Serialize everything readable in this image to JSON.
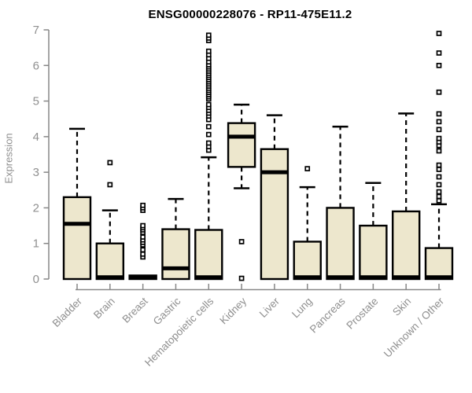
{
  "chart_data": {
    "type": "boxplot",
    "title": "ENSG00000228076 - RP11-475E11.2",
    "ylabel": "Expression",
    "ylim": [
      0,
      7
    ],
    "yticks": [
      0,
      1,
      2,
      3,
      4,
      5,
      6,
      7
    ],
    "grid": false,
    "categories": [
      "Bladder",
      "Brain",
      "Breast",
      "Gastric",
      "Hematopoietic cells",
      "Kidney",
      "Liver",
      "Lung",
      "Pancreas",
      "Prostate",
      "Skin",
      "Unknown / Other"
    ],
    "boxes": [
      {
        "category": "Bladder",
        "low": 0,
        "q1": 0,
        "median": 1.55,
        "q3": 2.3,
        "high": 4.22,
        "outliers": []
      },
      {
        "category": "Brain",
        "low": 0,
        "q1": 0,
        "median": 0.05,
        "q3": 1.0,
        "high": 1.93,
        "outliers": [
          2.65,
          3.27
        ]
      },
      {
        "category": "Breast",
        "low": 0,
        "q1": 0,
        "median": 0.05,
        "q3": 0.1,
        "high": 0.1,
        "outliers": [
          0.62,
          0.7,
          0.82,
          0.96,
          1.03,
          1.1,
          1.18,
          1.31,
          1.38,
          1.44,
          1.5,
          1.93,
          2.0,
          2.07
        ]
      },
      {
        "category": "Gastric",
        "low": 0,
        "q1": 0,
        "median": 0.3,
        "q3": 1.4,
        "high": 2.25,
        "outliers": []
      },
      {
        "category": "Hematopoietic cells",
        "low": 0,
        "q1": 0,
        "median": 0.05,
        "q3": 1.38,
        "high": 3.42,
        "outliers": [
          3.62,
          3.72,
          3.82,
          4.06,
          4.28,
          4.48,
          4.58,
          4.66,
          4.74,
          4.82,
          4.9,
          5.06,
          5.12,
          5.18,
          5.24,
          5.3,
          5.36,
          5.42,
          5.48,
          5.54,
          5.6,
          5.66,
          5.72,
          5.78,
          5.84,
          5.9,
          5.96,
          6.02,
          6.1,
          6.2,
          6.3,
          6.4,
          6.7,
          6.77,
          6.85
        ]
      },
      {
        "category": "Kidney",
        "low": 2.55,
        "q1": 3.15,
        "median": 4.0,
        "q3": 4.38,
        "high": 4.9,
        "outliers": [
          1.05,
          0.02
        ]
      },
      {
        "category": "Liver",
        "low": 0,
        "q1": 0,
        "median": 3.0,
        "q3": 3.65,
        "high": 4.6,
        "outliers": []
      },
      {
        "category": "Lung",
        "low": 0,
        "q1": 0,
        "median": 0.05,
        "q3": 1.05,
        "high": 2.58,
        "outliers": [
          3.1
        ]
      },
      {
        "category": "Pancreas",
        "low": 0,
        "q1": 0,
        "median": 0.05,
        "q3": 2.0,
        "high": 4.28,
        "outliers": []
      },
      {
        "category": "Prostate",
        "low": 0,
        "q1": 0,
        "median": 0.05,
        "q3": 1.5,
        "high": 2.7,
        "outliers": []
      },
      {
        "category": "Skin",
        "low": 0,
        "q1": 0,
        "median": 0.05,
        "q3": 1.9,
        "high": 4.65,
        "outliers": []
      },
      {
        "category": "Unknown / Other",
        "low": 0,
        "q1": 0,
        "median": 0.05,
        "q3": 0.87,
        "high": 2.1,
        "outliers": [
          2.2,
          2.32,
          2.45,
          2.65,
          2.87,
          3.08,
          3.2,
          3.6,
          3.75,
          3.85,
          3.95,
          4.2,
          4.42,
          4.64,
          5.25,
          6.0,
          6.35,
          6.9
        ]
      }
    ],
    "colors": {
      "box_fill": "#EDE7CD",
      "box_border": "#000000",
      "median": "#000000",
      "whisker": "#000000",
      "outlier": "#000000",
      "axis": "#878787",
      "tick_label": "#8f8f8f",
      "title": "#000000",
      "background": "#ffffff"
    }
  }
}
